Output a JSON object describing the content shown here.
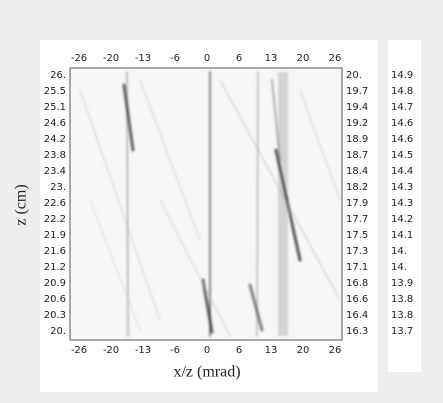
{
  "plot": {
    "x_label": "x/z (mrad)",
    "y_label": "z (cm)",
    "top_ticks": [
      "-26",
      "-20",
      "-13",
      "-6",
      "0",
      "6",
      "13",
      "20",
      "26"
    ],
    "bottom_ticks": [
      "-26",
      "-20",
      "-13",
      "-6",
      "0",
      "6",
      "13",
      "20",
      "26"
    ],
    "left_ticks": [
      "26.",
      "25.5",
      "25.1",
      "24.6",
      "24.2",
      "23.8",
      "23.4",
      "23.",
      "22.6",
      "22.2",
      "21.9",
      "21.6",
      "21.2",
      "20.9",
      "20.6",
      "20.3",
      "20."
    ],
    "right_ticks": [
      "20.",
      "19.7",
      "19.4",
      "19.2",
      "18.9",
      "18.7",
      "18.4",
      "18.2",
      "17.9",
      "17.7",
      "17.5",
      "17.3",
      "17.1",
      "16.8",
      "16.6",
      "16.4",
      "16.3"
    ],
    "side_ticks": [
      "14.9",
      "14.8",
      "14.7",
      "14.6",
      "14.6",
      "14.5",
      "14.4",
      "14.3",
      "14.3",
      "14.2",
      "14.1",
      "14.",
      "14.",
      "13.9",
      "13.8",
      "13.8",
      "13.7"
    ]
  }
}
